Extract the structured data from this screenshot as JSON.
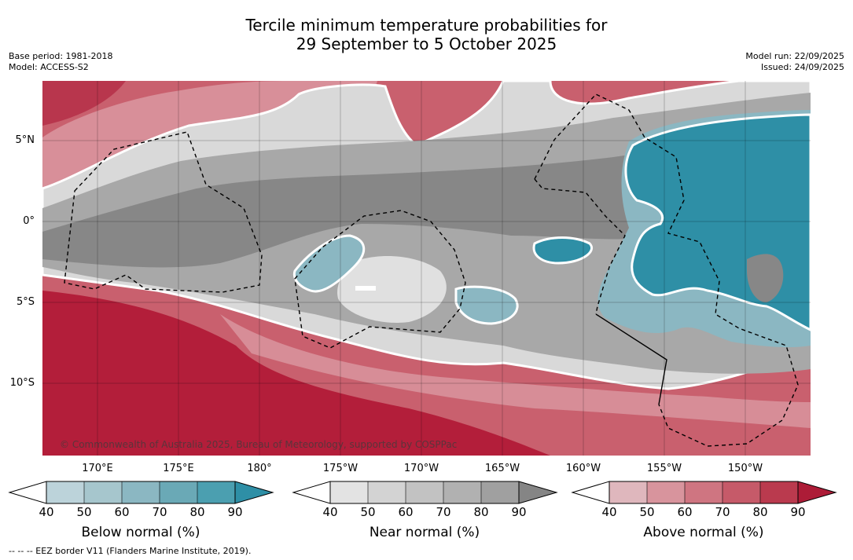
{
  "title_line1": "Tercile minimum temperature probabilities for",
  "title_line2": "29 September to 5 October 2025",
  "base_period": "Base period: 1981-2018",
  "model": "Model: ACCESS-S2",
  "model_run": "Model run: 22/09/2025",
  "issued": "Issued: 24/09/2025",
  "latitude_labels": [
    "5°N",
    "0°",
    "5°S",
    "10°S"
  ],
  "longitude_labels": [
    "170°E",
    "175°E",
    "180°",
    "175°W",
    "170°W",
    "165°W",
    "160°W",
    "155°W",
    "150°W"
  ],
  "copyright": "© Commonwealth of Australia 2025, Bureau of Meteorology, supported by COSPPac",
  "colorbars": [
    {
      "label": "Below normal (%)",
      "ticks": [
        "40",
        "50",
        "60",
        "70",
        "80",
        "90"
      ],
      "colors": [
        "#bcd3da",
        "#a6c6cd",
        "#8bb7c2",
        "#6aa9b6",
        "#4b9fb0",
        "#2e8fa6"
      ]
    },
    {
      "label": "Near normal (%)",
      "ticks": [
        "40",
        "50",
        "60",
        "70",
        "80",
        "90"
      ],
      "colors": [
        "#e3e3e3",
        "#d3d3d3",
        "#c2c2c2",
        "#b1b1b1",
        "#a0a0a0",
        "#858585"
      ]
    },
    {
      "label": "Above normal (%)",
      "ticks": [
        "40",
        "50",
        "60",
        "70",
        "80",
        "90"
      ],
      "colors": [
        "#dfb7bd",
        "#d8949d",
        "#cf7581",
        "#c65a69",
        "#ba3a4e",
        "#ad1c37"
      ]
    }
  ],
  "footnote": "--  --  -- EEZ border V11 (Flanders Marine Institute, 2019).",
  "colors": {
    "above_strong": "#b31e3a",
    "above_mid": "#c65a69",
    "above_light": "#d8949d",
    "near_light": "#d6d6d6",
    "near_mid": "#a6a6a6",
    "near_dark": "#878787",
    "below_strong": "#2e8fa6",
    "below_light": "#8bb7c2"
  }
}
